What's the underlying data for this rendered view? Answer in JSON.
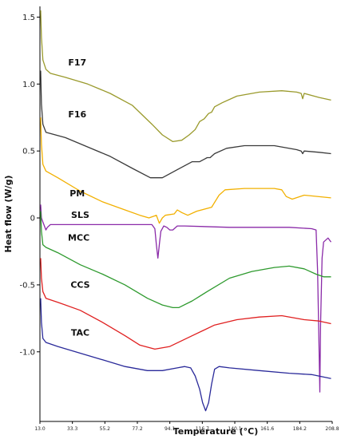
{
  "chart_data": {
    "type": "line",
    "xlabel": "Temperature (°C)",
    "ylabel": "Heat flow (W/g)",
    "xlim": [
      13.0,
      208.8
    ],
    "ylim": [
      -1.52,
      1.58
    ],
    "x_ticks": [
      "13.0",
      "33.3",
      "55.2",
      "77.2",
      "94.1",
      "116.7",
      "140.1",
      "161.6",
      "184.2",
      "208.8"
    ],
    "y_ticks": [
      {
        "label": "1.5",
        "value": 1.5
      },
      {
        "label": "1.0",
        "value": 1.0
      },
      {
        "label": "0.5",
        "value": 0.5
      },
      {
        "label": "0",
        "value": 0.0
      },
      {
        "label": "-0.5",
        "value": -0.5
      },
      {
        "label": "-1.0",
        "value": -1.0
      }
    ],
    "series": [
      {
        "name": "F17",
        "color": "#9a9a2c",
        "label_at": [
          38,
          1.14
        ],
        "points": [
          [
            13.5,
            1.55
          ],
          [
            14,
            1.35
          ],
          [
            15,
            1.18
          ],
          [
            17,
            1.11
          ],
          [
            20,
            1.08
          ],
          [
            30,
            1.05
          ],
          [
            45,
            1.0
          ],
          [
            60,
            0.93
          ],
          [
            75,
            0.84
          ],
          [
            88,
            0.7
          ],
          [
            95,
            0.62
          ],
          [
            102,
            0.57
          ],
          [
            108,
            0.58
          ],
          [
            113,
            0.62
          ],
          [
            117,
            0.66
          ],
          [
            120,
            0.72
          ],
          [
            123,
            0.74
          ],
          [
            126,
            0.78
          ],
          [
            128,
            0.79
          ],
          [
            130,
            0.83
          ],
          [
            135,
            0.86
          ],
          [
            145,
            0.91
          ],
          [
            160,
            0.94
          ],
          [
            175,
            0.95
          ],
          [
            185,
            0.94
          ],
          [
            188,
            0.93
          ],
          [
            189,
            0.89
          ],
          [
            190,
            0.93
          ],
          [
            200,
            0.9
          ],
          [
            208,
            0.88
          ]
        ]
      },
      {
        "name": "F16",
        "color": "#3a3a3a",
        "label_at": [
          38,
          0.75
        ],
        "points": [
          [
            13.5,
            1.1
          ],
          [
            14,
            0.85
          ],
          [
            15,
            0.7
          ],
          [
            17,
            0.64
          ],
          [
            30,
            0.6
          ],
          [
            45,
            0.53
          ],
          [
            60,
            0.46
          ],
          [
            75,
            0.37
          ],
          [
            87,
            0.3
          ],
          [
            95,
            0.3
          ],
          [
            105,
            0.36
          ],
          [
            115,
            0.42
          ],
          [
            120,
            0.42
          ],
          [
            125,
            0.45
          ],
          [
            127,
            0.45
          ],
          [
            130,
            0.48
          ],
          [
            138,
            0.52
          ],
          [
            150,
            0.54
          ],
          [
            170,
            0.54
          ],
          [
            185,
            0.51
          ],
          [
            188,
            0.5
          ],
          [
            189,
            0.48
          ],
          [
            190,
            0.5
          ],
          [
            200,
            0.49
          ],
          [
            208,
            0.48
          ]
        ]
      },
      {
        "name": "PM",
        "color": "#f2b000",
        "label_at": [
          38,
          0.16
        ],
        "points": [
          [
            13.5,
            0.75
          ],
          [
            14,
            0.55
          ],
          [
            15,
            0.4
          ],
          [
            17,
            0.35
          ],
          [
            25,
            0.3
          ],
          [
            40,
            0.2
          ],
          [
            55,
            0.12
          ],
          [
            70,
            0.06
          ],
          [
            80,
            0.02
          ],
          [
            86,
            0.0
          ],
          [
            91,
            0.02
          ],
          [
            93,
            -0.04
          ],
          [
            95,
            0.0
          ],
          [
            97,
            0.02
          ],
          [
            103,
            0.03
          ],
          [
            105,
            0.06
          ],
          [
            108,
            0.04
          ],
          [
            112,
            0.02
          ],
          [
            118,
            0.05
          ],
          [
            128,
            0.08
          ],
          [
            133,
            0.17
          ],
          [
            137,
            0.21
          ],
          [
            150,
            0.22
          ],
          [
            170,
            0.22
          ],
          [
            175,
            0.21
          ],
          [
            178,
            0.16
          ],
          [
            182,
            0.14
          ],
          [
            190,
            0.17
          ],
          [
            208,
            0.15
          ]
        ]
      },
      {
        "name": "SLS",
        "color": "#8a2aa8",
        "label_at": [
          40,
          0.0
        ],
        "points": [
          [
            13.5,
            0.1
          ],
          [
            14,
            0.0
          ],
          [
            15,
            -0.03
          ],
          [
            16,
            -0.06
          ],
          [
            17,
            -0.09
          ],
          [
            18,
            -0.07
          ],
          [
            20,
            -0.05
          ],
          [
            40,
            -0.05
          ],
          [
            60,
            -0.05
          ],
          [
            80,
            -0.05
          ],
          [
            88,
            -0.05
          ],
          [
            90,
            -0.08
          ],
          [
            91,
            -0.2
          ],
          [
            92,
            -0.3
          ],
          [
            93,
            -0.2
          ],
          [
            94,
            -0.1
          ],
          [
            96,
            -0.06
          ],
          [
            98,
            -0.07
          ],
          [
            100,
            -0.09
          ],
          [
            102,
            -0.09
          ],
          [
            105,
            -0.06
          ],
          [
            110,
            -0.06
          ],
          [
            140,
            -0.07
          ],
          [
            180,
            -0.07
          ],
          [
            195,
            -0.08
          ],
          [
            198,
            -0.09
          ],
          [
            199,
            -0.4
          ],
          [
            200,
            -1.0
          ],
          [
            200.5,
            -1.3
          ],
          [
            201,
            -0.8
          ],
          [
            202,
            -0.3
          ],
          [
            203,
            -0.18
          ],
          [
            206,
            -0.15
          ],
          [
            208,
            -0.18
          ]
        ]
      },
      {
        "name": "MCC",
        "color": "#2e9a2e",
        "label_at": [
          39,
          -0.17
        ],
        "points": [
          [
            13.5,
            0.05
          ],
          [
            14,
            -0.1
          ],
          [
            15,
            -0.2
          ],
          [
            17,
            -0.22
          ],
          [
            25,
            -0.26
          ],
          [
            40,
            -0.35
          ],
          [
            55,
            -0.42
          ],
          [
            70,
            -0.5
          ],
          [
            85,
            -0.6
          ],
          [
            95,
            -0.65
          ],
          [
            102,
            -0.67
          ],
          [
            106,
            -0.67
          ],
          [
            115,
            -0.62
          ],
          [
            125,
            -0.55
          ],
          [
            140,
            -0.45
          ],
          [
            155,
            -0.4
          ],
          [
            170,
            -0.37
          ],
          [
            180,
            -0.36
          ],
          [
            190,
            -0.38
          ],
          [
            198,
            -0.42
          ],
          [
            203,
            -0.44
          ],
          [
            208,
            -0.44
          ]
        ]
      },
      {
        "name": "CCS",
        "color": "#e02020",
        "label_at": [
          40,
          -0.52
        ],
        "points": [
          [
            13.5,
            -0.3
          ],
          [
            14,
            -0.45
          ],
          [
            15,
            -0.55
          ],
          [
            17,
            -0.6
          ],
          [
            25,
            -0.63
          ],
          [
            40,
            -0.69
          ],
          [
            55,
            -0.78
          ],
          [
            70,
            -0.88
          ],
          [
            80,
            -0.95
          ],
          [
            90,
            -0.98
          ],
          [
            100,
            -0.96
          ],
          [
            115,
            -0.88
          ],
          [
            130,
            -0.8
          ],
          [
            145,
            -0.76
          ],
          [
            160,
            -0.74
          ],
          [
            175,
            -0.73
          ],
          [
            190,
            -0.76
          ],
          [
            200,
            -0.77
          ],
          [
            208,
            -0.79
          ]
        ]
      },
      {
        "name": "TAC",
        "color": "#2a2a9a",
        "label_at": [
          40,
          -0.88
        ],
        "points": [
          [
            13.5,
            -0.6
          ],
          [
            14,
            -0.78
          ],
          [
            15,
            -0.9
          ],
          [
            17,
            -0.93
          ],
          [
            25,
            -0.96
          ],
          [
            40,
            -1.01
          ],
          [
            55,
            -1.06
          ],
          [
            70,
            -1.11
          ],
          [
            85,
            -1.14
          ],
          [
            95,
            -1.14
          ],
          [
            105,
            -1.12
          ],
          [
            110,
            -1.11
          ],
          [
            114,
            -1.12
          ],
          [
            117,
            -1.18
          ],
          [
            120,
            -1.28
          ],
          [
            122,
            -1.38
          ],
          [
            124,
            -1.44
          ],
          [
            126,
            -1.38
          ],
          [
            128,
            -1.24
          ],
          [
            130,
            -1.13
          ],
          [
            133,
            -1.11
          ],
          [
            140,
            -1.12
          ],
          [
            160,
            -1.14
          ],
          [
            180,
            -1.16
          ],
          [
            195,
            -1.17
          ],
          [
            208,
            -1.2
          ]
        ]
      }
    ]
  }
}
